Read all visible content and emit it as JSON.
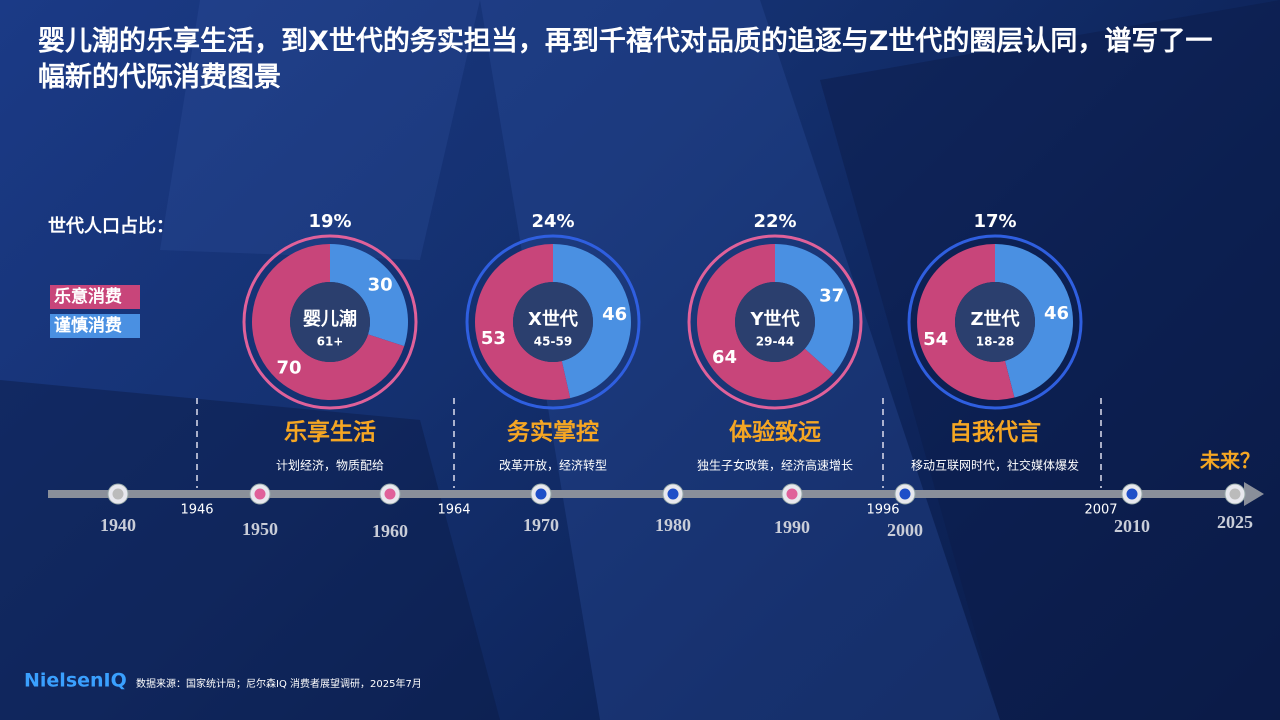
{
  "title": "婴儿潮的乐享生活，到X世代的务实担当，再到千禧代对品质的追逐与Z世代的圈层认同，谱写了一幅新的代际消费图景",
  "share_label": "世代人口占比：",
  "legend": [
    {
      "name": "乐意消费",
      "color": "#c8457a"
    },
    {
      "name": "谨慎消费",
      "color": "#4a90e2"
    }
  ],
  "generations": [
    {
      "share": "19%",
      "name": "婴儿潮",
      "age": "61+",
      "values": [
        70,
        30
      ],
      "theme": "乐享生活",
      "desc": "计划经济，物质配给",
      "ring": "#e0619a"
    },
    {
      "share": "24%",
      "name": "X世代",
      "age": "45-59",
      "values": [
        53,
        46
      ],
      "theme": "务实掌控",
      "desc": "改革开放，经济转型",
      "ring": "#2f5fe0"
    },
    {
      "share": "22%",
      "name": "Y世代",
      "age": "29-44",
      "values": [
        64,
        37
      ],
      "theme": "体验致远",
      "desc": "独生子女政策，经济高速增长",
      "ring": "#e0619a"
    },
    {
      "share": "17%",
      "name": "Z世代",
      "age": "18-28",
      "values": [
        54,
        46
      ],
      "theme": "自我代言",
      "desc": "移动互联网时代，社交媒体爆发",
      "ring": "#2f5fe0"
    }
  ],
  "timeline": {
    "years": [
      {
        "label": "1940",
        "color": "#bbbbbb"
      },
      {
        "label": "1950",
        "color": "#e0619a"
      },
      {
        "label": "1960",
        "color": "#e0619a"
      },
      {
        "label": "1970",
        "color": "#1f4fc8"
      },
      {
        "label": "1980",
        "color": "#1f4fc8"
      },
      {
        "label": "1990",
        "color": "#e0619a"
      },
      {
        "label": "2000",
        "color": "#1f4fc8"
      },
      {
        "label": "2010",
        "color": "#1f4fc8"
      },
      {
        "label": "2025",
        "color": "#bbbbbb"
      }
    ],
    "boundaries": [
      "1946",
      "1964",
      "1996",
      "2007"
    ],
    "future": "未来？"
  },
  "source": "数据来源：国家统计局；尼尔森IQ 消费者展望调研，2025年7月",
  "logo": "NielsenIQ"
}
